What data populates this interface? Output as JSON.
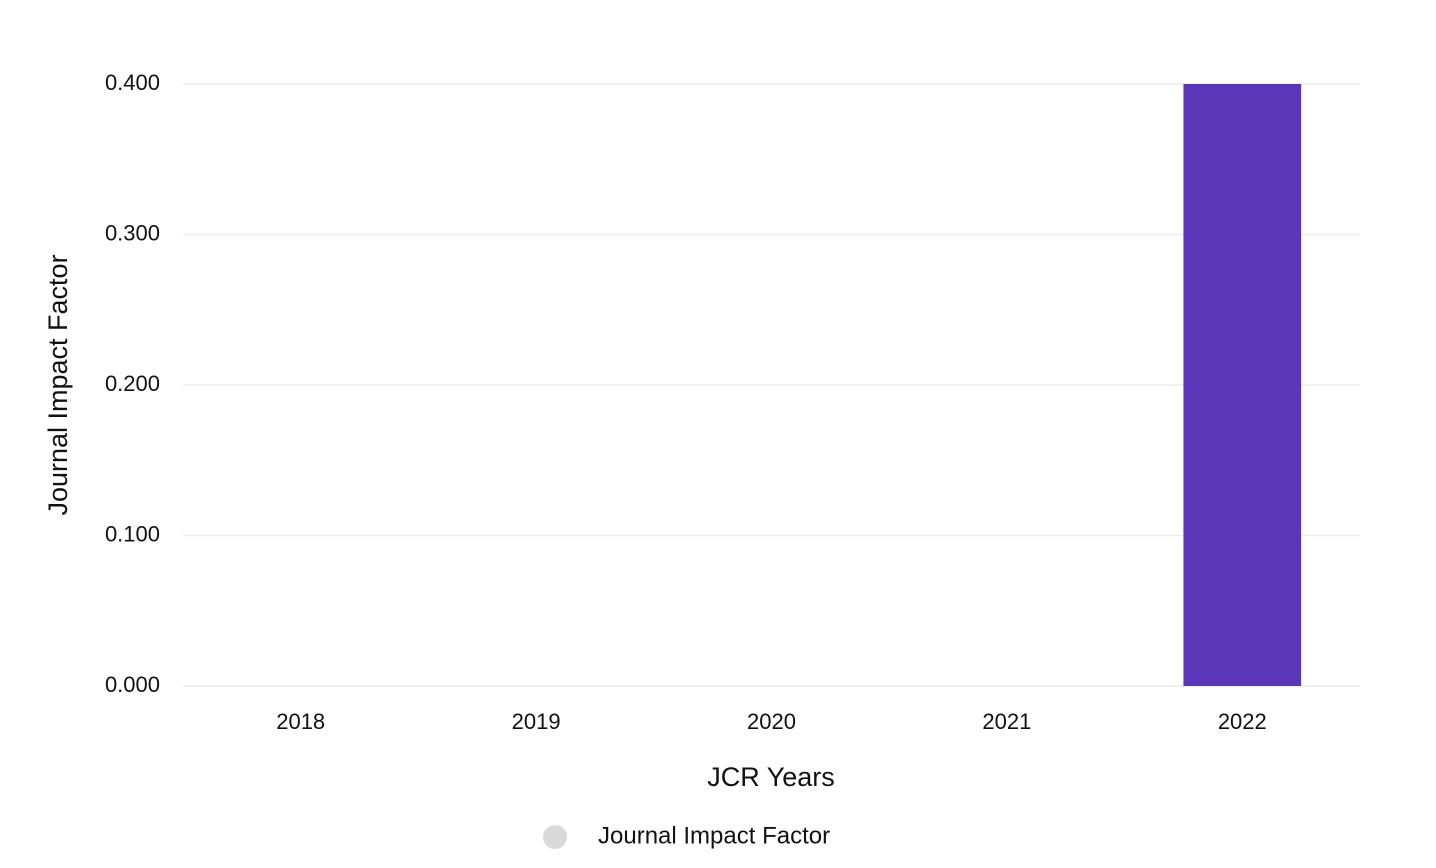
{
  "chart_data": {
    "type": "bar",
    "x_label": "JCR Years",
    "y_label": "Journal Impact Factor",
    "categories": [
      "2018",
      "2019",
      "2020",
      "2021",
      "2022"
    ],
    "series": [
      {
        "name": "Journal Impact Factor",
        "color": "#5a37b8",
        "values": [
          null,
          null,
          null,
          null,
          0.4
        ]
      }
    ],
    "legend_color": "#d9d9d9",
    "ylim": [
      0,
      0.4
    ],
    "yticks": [
      {
        "value": 0,
        "label": "0.000"
      },
      {
        "value": 0.1,
        "label": "0.100"
      },
      {
        "value": 0.2,
        "label": "0.200"
      },
      {
        "value": 0.3,
        "label": "0.300"
      },
      {
        "value": 0.4,
        "label": "0.400"
      }
    ],
    "grid": true
  }
}
